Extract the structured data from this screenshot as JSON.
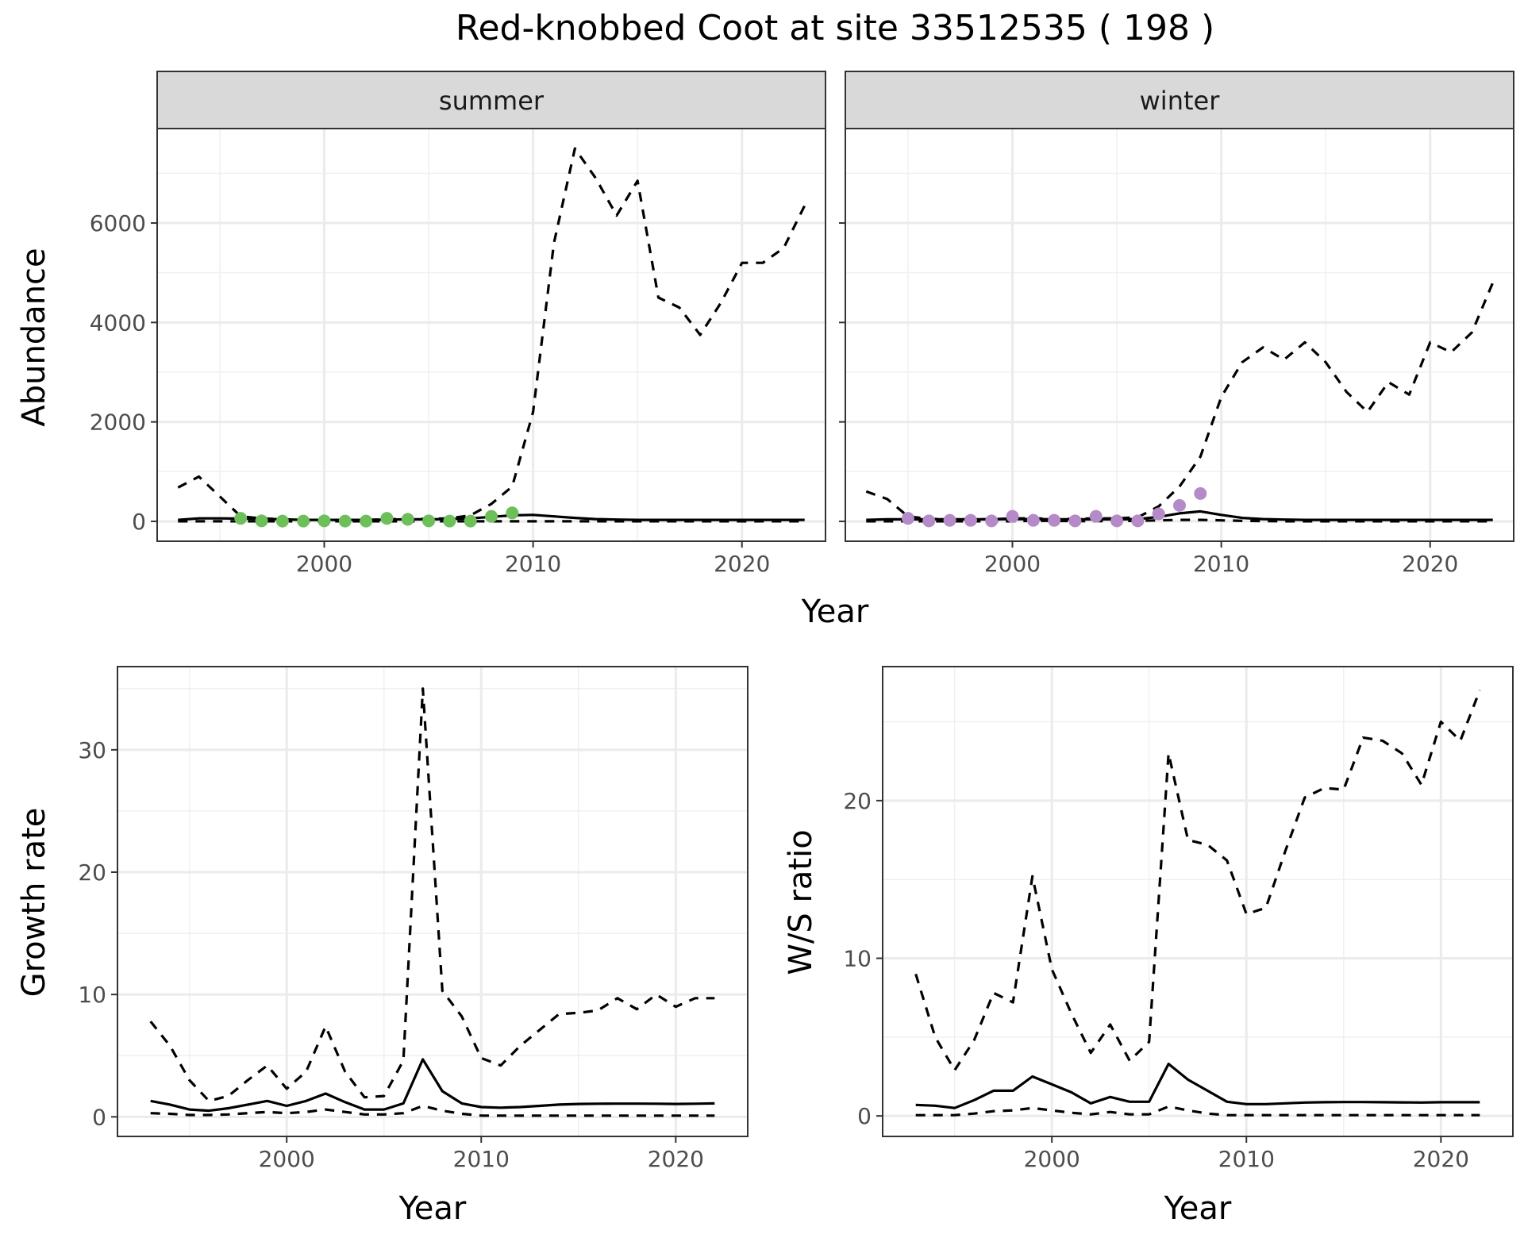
{
  "figure": {
    "title": "Red-knobbed Coot at site 33512535 ( 198 )"
  },
  "chart_data": [
    {
      "type": "line",
      "facet": "summer",
      "xlabel": "Year",
      "ylabel": "Abundance",
      "xlim": [
        1992,
        2024
      ],
      "ylim": [
        -400,
        7900
      ],
      "xticks": [
        2000,
        2010,
        2020
      ],
      "yticks": [
        0,
        2000,
        4000,
        6000
      ],
      "series": [
        {
          "role": "mean",
          "style": "solid",
          "color": "#000000",
          "x": [
            1993,
            1994,
            1995,
            1996,
            1997,
            1998,
            1999,
            2000,
            2001,
            2002,
            2003,
            2004,
            2005,
            2006,
            2007,
            2008,
            2009,
            2010,
            2011,
            2012,
            2013,
            2014,
            2015,
            2016,
            2017,
            2018,
            2019,
            2020,
            2021,
            2022,
            2023
          ],
          "y": [
            30,
            60,
            60,
            55,
            50,
            40,
            30,
            30,
            30,
            30,
            35,
            40,
            40,
            45,
            60,
            90,
            120,
            130,
            100,
            70,
            45,
            35,
            30,
            30,
            30,
            30,
            30,
            30,
            30,
            30,
            30
          ]
        },
        {
          "role": "upper",
          "style": "dashed",
          "color": "#000000",
          "x": [
            1993,
            1994,
            1995,
            1996,
            1997,
            1998,
            1999,
            2000,
            2001,
            2002,
            2003,
            2004,
            2005,
            2006,
            2007,
            2008,
            2009,
            2010,
            2011,
            2012,
            2013,
            2014,
            2015,
            2016,
            2017,
            2018,
            2019,
            2020,
            2021,
            2022,
            2023
          ],
          "y": [
            680,
            900,
            500,
            100,
            60,
            40,
            30,
            30,
            30,
            30,
            40,
            50,
            50,
            60,
            120,
            350,
            700,
            2200,
            5600,
            7500,
            6900,
            6150,
            6850,
            4500,
            4300,
            3750,
            4400,
            5200,
            5200,
            5500,
            6350
          ]
        },
        {
          "role": "lower",
          "style": "dashed",
          "color": "#000000",
          "x": [
            1993,
            1994,
            1995,
            1996,
            1997,
            1998,
            1999,
            2000,
            2001,
            2002,
            2003,
            2004,
            2005,
            2006,
            2007,
            2008,
            2009,
            2010,
            2011,
            2012,
            2013,
            2014,
            2015,
            2016,
            2017,
            2018,
            2019,
            2020,
            2021,
            2022,
            2023
          ],
          "y": [
            0,
            0,
            0,
            0,
            0,
            0,
            0,
            0,
            0,
            0,
            0,
            0,
            0,
            0,
            0,
            0,
            0,
            0,
            0,
            0,
            0,
            0,
            0,
            0,
            0,
            0,
            0,
            0,
            0,
            0,
            0
          ]
        },
        {
          "role": "observed",
          "style": "points",
          "color": "#6dbf5a",
          "x": [
            1996,
            1997,
            1998,
            1999,
            2000,
            2001,
            2002,
            2003,
            2004,
            2005,
            2006,
            2007,
            2008,
            2009
          ],
          "y": [
            60,
            10,
            5,
            5,
            10,
            5,
            5,
            60,
            40,
            10,
            5,
            5,
            100,
            170
          ]
        }
      ]
    },
    {
      "type": "line",
      "facet": "winter",
      "xlabel": "Year",
      "ylabel": "Abundance",
      "xlim": [
        1992,
        2024
      ],
      "ylim": [
        -400,
        7900
      ],
      "xticks": [
        2000,
        2010,
        2020
      ],
      "yticks": [
        0,
        2000,
        4000,
        6000
      ],
      "series": [
        {
          "role": "mean",
          "style": "solid",
          "color": "#000000",
          "x": [
            1993,
            1994,
            1995,
            1996,
            1997,
            1998,
            1999,
            2000,
            2001,
            2002,
            2003,
            2004,
            2005,
            2006,
            2007,
            2008,
            2009,
            2010,
            2011,
            2012,
            2013,
            2014,
            2015,
            2016,
            2017,
            2018,
            2019,
            2020,
            2021,
            2022,
            2023
          ],
          "y": [
            30,
            40,
            40,
            40,
            40,
            40,
            40,
            45,
            45,
            40,
            40,
            40,
            40,
            45,
            90,
            160,
            200,
            130,
            70,
            45,
            35,
            30,
            30,
            30,
            30,
            30,
            30,
            30,
            30,
            30,
            30
          ]
        },
        {
          "role": "upper",
          "style": "dashed",
          "color": "#000000",
          "x": [
            1993,
            1994,
            1995,
            1996,
            1997,
            1998,
            1999,
            2000,
            2001,
            2002,
            2003,
            2004,
            2005,
            2006,
            2007,
            2008,
            2009,
            2010,
            2011,
            2012,
            2013,
            2014,
            2015,
            2016,
            2017,
            2018,
            2019,
            2020,
            2021,
            2022,
            2023
          ],
          "y": [
            600,
            450,
            100,
            50,
            40,
            40,
            40,
            60,
            60,
            50,
            50,
            60,
            60,
            80,
            300,
            700,
            1300,
            2500,
            3200,
            3500,
            3250,
            3600,
            3200,
            2600,
            2200,
            2800,
            2550,
            3600,
            3400,
            3800,
            4800
          ]
        },
        {
          "role": "lower",
          "style": "dashed",
          "color": "#000000",
          "x": [
            1993,
            1994,
            1995,
            1996,
            1997,
            1998,
            1999,
            2000,
            2001,
            2002,
            2003,
            2004,
            2005,
            2006,
            2007,
            2008,
            2009,
            2010,
            2011,
            2012,
            2013,
            2014,
            2015,
            2016,
            2017,
            2018,
            2019,
            2020,
            2021,
            2022,
            2023
          ],
          "y": [
            0,
            0,
            0,
            0,
            0,
            0,
            0,
            0,
            10,
            10,
            5,
            5,
            5,
            10,
            20,
            30,
            30,
            20,
            10,
            5,
            0,
            0,
            0,
            0,
            0,
            0,
            0,
            0,
            0,
            0,
            0
          ]
        },
        {
          "role": "observed",
          "style": "points",
          "color": "#b48bc8",
          "x": [
            1995,
            1996,
            1997,
            1998,
            1999,
            2000,
            2001,
            2002,
            2003,
            2004,
            2005,
            2006,
            2007,
            2008,
            2009
          ],
          "y": [
            60,
            10,
            20,
            20,
            10,
            100,
            20,
            20,
            10,
            100,
            10,
            10,
            150,
            320,
            560
          ]
        }
      ]
    },
    {
      "type": "line",
      "xlabel": "Year",
      "ylabel": "Growth rate",
      "xlim": [
        1991.3,
        2023.7
      ],
      "ylim": [
        -1.6,
        36.8
      ],
      "xticks": [
        2000,
        2010,
        2020
      ],
      "yticks": [
        0,
        10,
        20,
        30
      ],
      "series": [
        {
          "role": "mean",
          "style": "solid",
          "color": "#000000",
          "x": [
            1993,
            1994,
            1995,
            1996,
            1997,
            1998,
            1999,
            2000,
            2001,
            2002,
            2003,
            2004,
            2005,
            2006,
            2007,
            2008,
            2009,
            2010,
            2011,
            2012,
            2013,
            2014,
            2015,
            2016,
            2017,
            2018,
            2019,
            2020,
            2021,
            2022
          ],
          "y": [
            1.3,
            1.0,
            0.6,
            0.5,
            0.7,
            1.0,
            1.3,
            0.9,
            1.3,
            1.9,
            1.2,
            0.6,
            0.6,
            1.1,
            4.7,
            2.1,
            1.1,
            0.8,
            0.75,
            0.8,
            0.9,
            1.0,
            1.05,
            1.07,
            1.08,
            1.08,
            1.07,
            1.05,
            1.07,
            1.1
          ]
        },
        {
          "role": "upper",
          "style": "dashed",
          "color": "#000000",
          "x": [
            1993,
            1994,
            1995,
            1996,
            1997,
            1998,
            1999,
            2000,
            2001,
            2002,
            2003,
            2004,
            2005,
            2006,
            2007,
            2008,
            2009,
            2010,
            2011,
            2012,
            2013,
            2014,
            2015,
            2016,
            2017,
            2018,
            2019,
            2020,
            2021,
            2022
          ],
          "y": [
            7.8,
            5.8,
            3.0,
            1.3,
            1.7,
            3.0,
            4.2,
            2.3,
            3.7,
            7.4,
            3.7,
            1.6,
            1.7,
            4.6,
            35.0,
            10.3,
            8.2,
            4.8,
            4.2,
            5.8,
            7.1,
            8.4,
            8.5,
            8.7,
            9.7,
            8.8,
            10.0,
            9.0,
            9.7,
            9.7
          ]
        },
        {
          "role": "lower",
          "style": "dashed",
          "color": "#000000",
          "x": [
            1993,
            1994,
            1995,
            1996,
            1997,
            1998,
            1999,
            2000,
            2001,
            2002,
            2003,
            2004,
            2005,
            2006,
            2007,
            2008,
            2009,
            2010,
            2011,
            2012,
            2013,
            2014,
            2015,
            2016,
            2017,
            2018,
            2019,
            2020,
            2021,
            2022
          ],
          "y": [
            0.3,
            0.25,
            0.15,
            0.15,
            0.2,
            0.3,
            0.4,
            0.3,
            0.4,
            0.6,
            0.4,
            0.2,
            0.2,
            0.3,
            0.9,
            0.5,
            0.25,
            0.1,
            0.1,
            0.1,
            0.1,
            0.1,
            0.1,
            0.1,
            0.1,
            0.1,
            0.1,
            0.1,
            0.1,
            0.1
          ]
        }
      ]
    },
    {
      "type": "line",
      "xlabel": "Year",
      "ylabel": "W/S ratio",
      "xlim": [
        1991.3,
        2023.7
      ],
      "ylim": [
        -1.3,
        28.5
      ],
      "xticks": [
        2000,
        2010,
        2020
      ],
      "yticks": [
        0,
        10,
        20
      ],
      "series": [
        {
          "role": "mean",
          "style": "solid",
          "color": "#000000",
          "x": [
            1993,
            1994,
            1995,
            1996,
            1997,
            1998,
            1999,
            2000,
            2001,
            2002,
            2003,
            2004,
            2005,
            2006,
            2007,
            2008,
            2009,
            2010,
            2011,
            2012,
            2013,
            2014,
            2015,
            2016,
            2017,
            2018,
            2019,
            2020,
            2021,
            2022
          ],
          "y": [
            0.7,
            0.65,
            0.5,
            1.0,
            1.6,
            1.6,
            2.5,
            2.0,
            1.5,
            0.8,
            1.2,
            0.9,
            0.9,
            3.3,
            2.3,
            1.6,
            0.9,
            0.75,
            0.75,
            0.8,
            0.85,
            0.87,
            0.88,
            0.88,
            0.87,
            0.86,
            0.85,
            0.87,
            0.87,
            0.87
          ]
        },
        {
          "role": "upper",
          "style": "dashed",
          "color": "#000000",
          "x": [
            1993,
            1994,
            1995,
            1996,
            1997,
            1998,
            1999,
            2000,
            2001,
            2002,
            2003,
            2004,
            2005,
            2006,
            2007,
            2008,
            2009,
            2010,
            2011,
            2012,
            2013,
            2014,
            2015,
            2016,
            2017,
            2018,
            2019,
            2020,
            2021,
            2022
          ],
          "y": [
            9.0,
            5.0,
            2.9,
            4.8,
            7.8,
            7.2,
            15.2,
            9.3,
            6.5,
            4.0,
            5.8,
            3.5,
            4.7,
            23.0,
            17.5,
            17.2,
            16.2,
            12.8,
            13.2,
            16.8,
            20.2,
            20.8,
            20.7,
            24.0,
            23.8,
            23.0,
            21.0,
            25.0,
            23.8,
            27.0
          ]
        },
        {
          "role": "lower",
          "style": "dashed",
          "color": "#000000",
          "x": [
            1993,
            1994,
            1995,
            1996,
            1997,
            1998,
            1999,
            2000,
            2001,
            2002,
            2003,
            2004,
            2005,
            2006,
            2007,
            2008,
            2009,
            2010,
            2011,
            2012,
            2013,
            2014,
            2015,
            2016,
            2017,
            2018,
            2019,
            2020,
            2021,
            2022
          ],
          "y": [
            0.05,
            0.05,
            0.05,
            0.15,
            0.3,
            0.35,
            0.5,
            0.35,
            0.2,
            0.1,
            0.25,
            0.1,
            0.1,
            0.6,
            0.35,
            0.15,
            0.05,
            0.05,
            0.05,
            0.05,
            0.05,
            0.05,
            0.05,
            0.05,
            0.05,
            0.05,
            0.05,
            0.05,
            0.05,
            0.05
          ]
        }
      ]
    }
  ]
}
